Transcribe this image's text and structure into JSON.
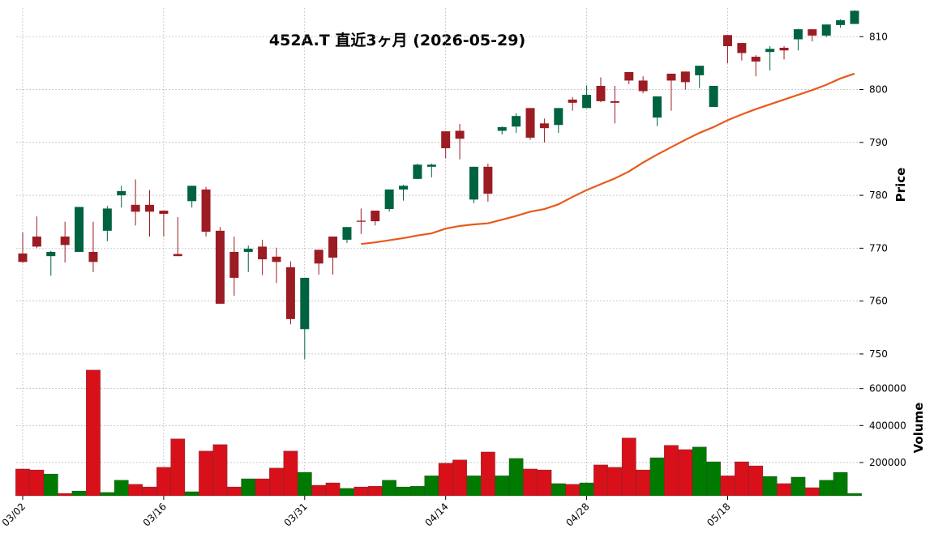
{
  "chart_data": {
    "type": "candlestick",
    "title": "452A.T  直近3ヶ月  (2026-05-29)",
    "categories": [
      "03/02",
      null,
      null,
      null,
      null,
      null,
      null,
      null,
      null,
      null,
      "03/16",
      null,
      null,
      null,
      null,
      null,
      null,
      null,
      null,
      null,
      "03/31",
      null,
      null,
      null,
      null,
      null,
      null,
      null,
      null,
      null,
      "04/14",
      null,
      null,
      null,
      null,
      null,
      null,
      null,
      null,
      null,
      "04/28",
      null,
      null,
      null,
      null,
      null,
      null,
      null,
      null,
      null,
      "05/18",
      null,
      null,
      null,
      null,
      null,
      null,
      null,
      null,
      null
    ],
    "open": [
      769.0,
      772.2,
      768.5,
      772.2,
      769.3,
      769.3,
      773.3,
      780.0,
      778.2,
      778.2,
      777.1,
      768.9,
      778.9,
      781.1,
      773.3,
      769.3,
      769.3,
      770.3,
      768.4,
      766.4,
      754.7,
      769.7,
      772.2,
      771.6,
      775.2,
      777.1,
      777.4,
      781.1,
      783.1,
      785.4,
      792.1,
      792.2,
      779.2,
      785.4,
      792.2,
      793.0,
      796.5,
      793.6,
      793.3,
      798.1,
      796.5,
      800.7,
      797.8,
      803.3,
      801.7,
      794.7,
      803.0,
      803.4,
      802.7,
      796.7,
      810.3,
      808.8,
      806.2,
      807.1,
      807.9,
      809.5,
      811.4,
      810.2,
      812.2,
      812.4
    ],
    "high": [
      773.0,
      776.0,
      769.5,
      775.0,
      777.8,
      775.0,
      778.0,
      781.8,
      783.0,
      781.0,
      777.1,
      775.9,
      781.8,
      781.6,
      774.0,
      772.2,
      770.5,
      771.6,
      770.1,
      767.5,
      764.4,
      769.7,
      772.2,
      774.0,
      777.5,
      777.1,
      781.1,
      782.0,
      786.0,
      786.0,
      792.1,
      793.5,
      785.4,
      786.0,
      793.0,
      795.5,
      796.5,
      794.5,
      796.5,
      798.6,
      800.8,
      802.3,
      800.7,
      803.3,
      802.5,
      798.7,
      803.0,
      803.4,
      804.5,
      800.7,
      810.3,
      808.8,
      806.5,
      808.2,
      808.2,
      811.5,
      811.4,
      812.3,
      813.3,
      815.0
    ],
    "low": [
      767.2,
      770.0,
      764.8,
      767.3,
      769.3,
      765.5,
      771.3,
      777.7,
      774.3,
      772.2,
      772.2,
      768.5,
      777.7,
      772.2,
      759.5,
      761.0,
      765.5,
      764.9,
      763.4,
      755.6,
      749.0,
      765.0,
      765.0,
      771.0,
      772.7,
      774.3,
      776.9,
      779.0,
      783.1,
      783.4,
      787.0,
      786.8,
      778.5,
      778.8,
      791.5,
      791.8,
      790.5,
      790.0,
      791.8,
      796.0,
      796.5,
      797.6,
      793.6,
      801.0,
      799.3,
      793.1,
      796.0,
      800.0,
      800.3,
      796.7,
      805.0,
      805.5,
      802.5,
      803.6,
      805.7,
      807.4,
      809.1,
      809.9,
      811.7,
      812.4
    ],
    "close": [
      767.4,
      770.3,
      769.3,
      770.6,
      777.8,
      767.4,
      777.5,
      780.8,
      776.9,
      776.9,
      776.5,
      768.5,
      781.8,
      773.1,
      759.5,
      764.4,
      769.9,
      767.9,
      767.4,
      756.6,
      764.4,
      767.1,
      768.2,
      774.0,
      775.0,
      775.1,
      781.1,
      781.8,
      785.8,
      785.8,
      788.9,
      790.7,
      785.4,
      780.3,
      792.9,
      795.0,
      790.9,
      792.7,
      796.5,
      797.5,
      799.0,
      797.8,
      797.5,
      801.7,
      799.7,
      798.7,
      801.7,
      801.4,
      804.5,
      800.7,
      808.2,
      806.9,
      805.3,
      807.7,
      807.4,
      811.4,
      810.2,
      812.3,
      813.1,
      814.9
    ],
    "volume": [
      165000,
      160000,
      138000,
      33000,
      46000,
      700000,
      38000,
      104000,
      82000,
      68000,
      174000,
      328000,
      42000,
      262000,
      297000,
      68000,
      112000,
      112000,
      170000,
      262000,
      147000,
      77000,
      90000,
      60000,
      68000,
      72000,
      104000,
      68000,
      72000,
      128000,
      196000,
      214000,
      128000,
      257000,
      128000,
      222000,
      165000,
      160000,
      86000,
      82000,
      90000,
      187000,
      174000,
      333000,
      160000,
      226000,
      293000,
      270000,
      284000,
      204000,
      128000,
      204000,
      182000,
      125000,
      86000,
      121000,
      64000,
      104000,
      147000,
      33000
    ],
    "ma": [
      null,
      null,
      null,
      null,
      null,
      null,
      null,
      null,
      null,
      null,
      null,
      null,
      null,
      null,
      null,
      null,
      null,
      null,
      null,
      null,
      null,
      null,
      null,
      null,
      770.8,
      771.1,
      771.5,
      771.9,
      772.4,
      772.8,
      773.7,
      774.2,
      774.5,
      774.7,
      775.4,
      776.1,
      776.9,
      777.4,
      778.3,
      779.7,
      781.0,
      782.1,
      783.2,
      784.5,
      786.2,
      787.7,
      789.1,
      790.5,
      791.8,
      792.9,
      794.2,
      795.3,
      796.3,
      797.2,
      798.1,
      799.0,
      799.9,
      800.9,
      802.1,
      803.0
    ],
    "up_color": "#006340",
    "down_color": "#9c1c24",
    "volume_up_color": "#007a00",
    "volume_down_color": "#d8101a",
    "ma_color": "#e8591a",
    "ylabel": "Price",
    "ylim": [
      748,
      815.4
    ],
    "yticks": [
      750,
      760,
      770,
      780,
      790,
      800,
      810
    ],
    "volume_label": "Volume",
    "volume_ylim": [
      20000,
      730000
    ],
    "volume_yticks": [
      200000,
      400000,
      600000
    ],
    "grid": true
  }
}
